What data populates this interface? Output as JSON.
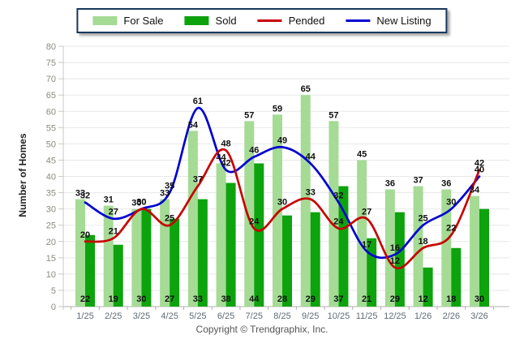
{
  "footer": {
    "copyright": "Copyright © Trendgraphix, Inc."
  },
  "colors": {
    "for_sale_bar": "#a5db95",
    "sold_bar": "#0da30d",
    "pended_line": "#c80000",
    "new_listing_line": "#0000d0",
    "legend_border": "#17375e",
    "gridline": "#e8e8e8",
    "axis_line": "#b0b0b0"
  },
  "chart_data": {
    "type": "bar",
    "subtype": "grouped-bars-with-smoothed-lines",
    "title": "",
    "xlabel": "",
    "ylabel": "Number of Homes",
    "ylim": [
      0,
      80
    ],
    "ytick_step": 5,
    "grid": "horizontal",
    "legend_position": "top-center",
    "categories": [
      "1/25",
      "2/25",
      "3/25",
      "4/25",
      "5/25",
      "6/25",
      "7/25",
      "8/25",
      "9/25",
      "10/25",
      "11/25",
      "12/25",
      "1/26",
      "2/26",
      "3/26"
    ],
    "series": [
      {
        "name": "For Sale",
        "type": "bar",
        "color": "#a5db95",
        "values": [
          33,
          31,
          30,
          33,
          54,
          44,
          57,
          59,
          65,
          57,
          45,
          36,
          37,
          36,
          34
        ]
      },
      {
        "name": "Sold",
        "type": "bar",
        "color": "#0da30d",
        "values": [
          22,
          19,
          30,
          27,
          33,
          38,
          44,
          28,
          29,
          37,
          21,
          29,
          12,
          18,
          30
        ]
      },
      {
        "name": "Pended",
        "type": "line",
        "color": "#c80000",
        "values": [
          20,
          21,
          30,
          25,
          37,
          48,
          24,
          30,
          33,
          24,
          27,
          12,
          18,
          22,
          42
        ]
      },
      {
        "name": "New Listing",
        "type": "line",
        "color": "#0000d0",
        "values": [
          32,
          27,
          30,
          35,
          61,
          42,
          46,
          49,
          44,
          32,
          17,
          16,
          25,
          30,
          40
        ]
      }
    ]
  }
}
